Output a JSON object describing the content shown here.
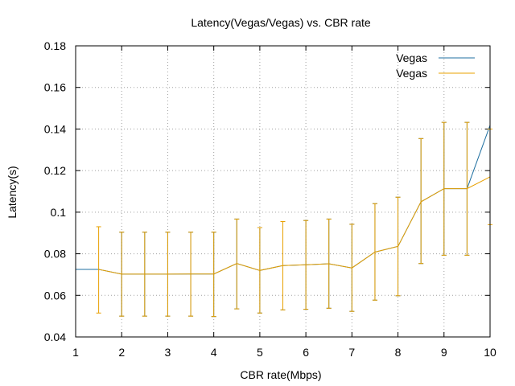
{
  "chart_data": {
    "type": "line",
    "title": "Latency(Vegas/Vegas) vs. CBR rate",
    "xlabel": "CBR rate(Mbps)",
    "ylabel": "Latency(s)",
    "xlim": [
      1,
      10
    ],
    "ylim": [
      0.04,
      0.18
    ],
    "xticks": [
      1,
      2,
      3,
      4,
      5,
      6,
      7,
      8,
      9,
      10
    ],
    "xtick_labels": [
      "1",
      "2",
      "3",
      "4",
      "5",
      "6",
      "7",
      "8",
      "9",
      "10"
    ],
    "yticks": [
      0.04,
      0.06,
      0.08,
      0.1,
      0.12,
      0.14,
      0.16,
      0.18
    ],
    "ytick_labels": [
      "0.04",
      "0.06",
      "0.08",
      "0.1",
      "0.12",
      "0.14",
      "0.16",
      "0.18"
    ],
    "grid": true,
    "legend_position": "top-right",
    "series": [
      {
        "name": "Vegas",
        "color": "#1f6fa0",
        "style": "line",
        "x": [
          1,
          1.5,
          2,
          2.5,
          3,
          3.5,
          4,
          4.5,
          5,
          5.5,
          6,
          6.5,
          7,
          7.5,
          8,
          8.5,
          9,
          9.5,
          10
        ],
        "y": [
          0.0725,
          0.0725,
          0.0702,
          0.0702,
          0.0702,
          0.0703,
          0.0703,
          0.0753,
          0.072,
          0.0743,
          0.0747,
          0.0752,
          0.0732,
          0.0808,
          0.0836,
          0.105,
          0.1113,
          0.1113,
          0.1418
        ],
        "err_low": [
          0.0725,
          0.0725,
          0.05,
          0.05,
          0.05,
          0.05,
          0.0498,
          0.0535,
          0.0515,
          0.053,
          0.0533,
          0.0538,
          0.0523,
          0.0577,
          0.0598,
          0.0753,
          0.0793,
          0.0793,
          0.1418
        ],
        "err_high": [
          0.0725,
          0.0725,
          0.0904,
          0.0904,
          0.0904,
          0.0904,
          0.0904,
          0.0967,
          0.0926,
          0.0955,
          0.096,
          0.0967,
          0.0942,
          0.1041,
          0.1072,
          0.1354,
          0.1432,
          0.1432,
          0.1418
        ]
      },
      {
        "name": "Vegas",
        "color": "#e8a000",
        "style": "errorbars",
        "x": [
          1.5,
          2,
          2.5,
          3,
          3.5,
          4,
          4.5,
          5,
          5.5,
          6,
          6.5,
          7,
          7.5,
          8,
          8.5,
          9,
          9.5,
          10
        ],
        "y": [
          0.0725,
          0.0702,
          0.0702,
          0.0702,
          0.0703,
          0.0703,
          0.0753,
          0.072,
          0.0743,
          0.0747,
          0.0752,
          0.0732,
          0.0808,
          0.0836,
          0.105,
          0.1113,
          0.1113,
          0.117
        ],
        "err_low": [
          0.0515,
          0.05,
          0.05,
          0.05,
          0.05,
          0.0498,
          0.0535,
          0.0515,
          0.053,
          0.0533,
          0.0538,
          0.0523,
          0.0577,
          0.0598,
          0.0753,
          0.0793,
          0.0793,
          0.094
        ],
        "err_high": [
          0.093,
          0.0904,
          0.0904,
          0.0904,
          0.0904,
          0.0904,
          0.0967,
          0.0926,
          0.0955,
          0.096,
          0.0967,
          0.0942,
          0.1041,
          0.1072,
          0.1354,
          0.1432,
          0.1432,
          0.14
        ]
      }
    ]
  }
}
